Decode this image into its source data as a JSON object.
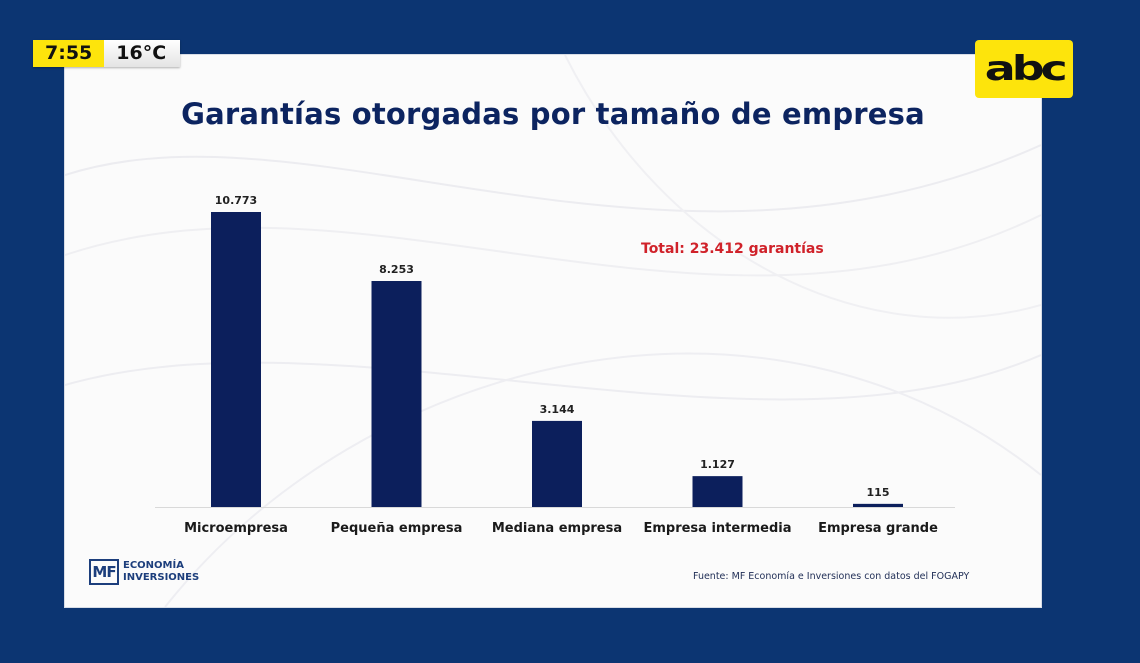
{
  "overlay": {
    "time": "7:55",
    "temperature": "16°C",
    "channel_logo": "abc"
  },
  "slide": {
    "title": "Garantías otorgadas por tamaño de empresa",
    "total_label": "Total: 23.412 garantías",
    "source": "Fuente: MF Economía e Inversiones con datos del FOGAPY",
    "logo": {
      "mark": "MF",
      "line1": "ECONOMÍA",
      "line2": "INVERSIONES"
    }
  },
  "colors": {
    "bar": "#0c1f5c",
    "title": "#0c2460",
    "total": "#d0222a",
    "background": "#0c3572",
    "overlay_yellow": "#fde40c"
  },
  "chart_data": {
    "type": "bar",
    "title": "Garantías otorgadas por tamaño de empresa",
    "categories": [
      "Microempresa",
      "Pequeña empresa",
      "Mediana empresa",
      "Empresa intermedia",
      "Empresa grande"
    ],
    "values": [
      10773,
      8253,
      3144,
      1127,
      115
    ],
    "value_labels": [
      "10.773",
      "8.253",
      "3.144",
      "1.127",
      "115"
    ],
    "xlabel": "",
    "ylabel": "",
    "ylim": [
      0,
      11000
    ],
    "grid": false,
    "legend": "none",
    "annotations": [
      "Total: 23.412 garantías"
    ]
  }
}
